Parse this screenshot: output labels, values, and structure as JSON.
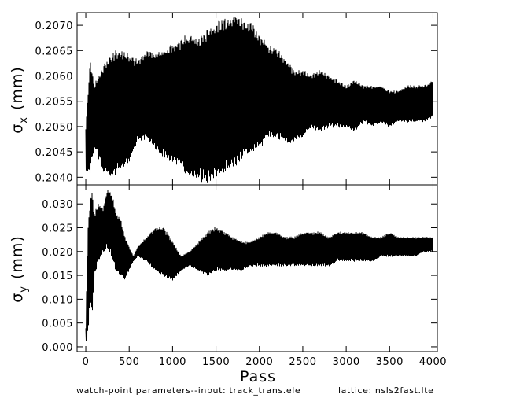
{
  "chart_data": [
    {
      "type": "line",
      "panel": "top",
      "title": "",
      "xlabel": "",
      "ylabel": "σ x (mm)",
      "ylabel_symbol": "σ",
      "ylabel_subscript": "x",
      "ylabel_units": "(mm)",
      "xlim": [
        -100,
        4050
      ],
      "ylim": [
        0.20385,
        0.20725
      ],
      "yticks": [
        0.204,
        0.2045,
        0.205,
        0.2055,
        0.206,
        0.2065,
        0.207
      ],
      "ytick_labels": [
        "0.2040",
        "0.2045",
        "0.2050",
        "0.2055",
        "0.2060",
        "0.2065",
        "0.2070"
      ],
      "grid": false,
      "color": "#000000",
      "series": [
        {
          "name": "",
          "envelope_x": [
            0,
            50,
            100,
            150,
            200,
            300,
            400,
            500,
            600,
            700,
            800,
            900,
            1000,
            1100,
            1200,
            1300,
            1400,
            1500,
            1600,
            1700,
            1800,
            1900,
            2000,
            2100,
            2200,
            2300,
            2400,
            2500,
            2600,
            2700,
            2800,
            2900,
            3000,
            3100,
            3200,
            3300,
            3400,
            3500,
            3600,
            3700,
            3800,
            3900,
            4000
          ],
          "upper": [
            0.205,
            0.2063,
            0.2058,
            0.206,
            0.2062,
            0.2064,
            0.2065,
            0.2064,
            0.2063,
            0.2065,
            0.2064,
            0.2065,
            0.2066,
            0.2067,
            0.2068,
            0.2067,
            0.2069,
            0.207,
            0.2071,
            0.2072,
            0.2071,
            0.207,
            0.2068,
            0.2066,
            0.2065,
            0.2063,
            0.2061,
            0.2061,
            0.206,
            0.2061,
            0.206,
            0.2059,
            0.2058,
            0.2059,
            0.2058,
            0.2058,
            0.2058,
            0.2057,
            0.2057,
            0.2058,
            0.2058,
            0.2058,
            0.2059
          ],
          "lower": [
            0.2041,
            0.2041,
            0.2046,
            0.2044,
            0.2041,
            0.204,
            0.2042,
            0.2043,
            0.2047,
            0.2048,
            0.2046,
            0.2044,
            0.2043,
            0.2042,
            0.204,
            0.204,
            0.2039,
            0.204,
            0.2041,
            0.2042,
            0.2044,
            0.2045,
            0.2046,
            0.2048,
            0.2048,
            0.2047,
            0.2047,
            0.2048,
            0.205,
            0.2049,
            0.205,
            0.205,
            0.205,
            0.2049,
            0.2051,
            0.205,
            0.2051,
            0.205,
            0.2051,
            0.2051,
            0.2051,
            0.2051,
            0.2052
          ]
        }
      ]
    },
    {
      "type": "line",
      "panel": "bottom",
      "title": "",
      "xlabel": "Pass",
      "ylabel": "σ y (mm)",
      "ylabel_symbol": "σ",
      "ylabel_subscript": "y",
      "ylabel_units": "(mm)",
      "xlim": [
        -100,
        4050
      ],
      "ylim": [
        -0.001,
        0.034
      ],
      "xticks": [
        0,
        500,
        1000,
        1500,
        2000,
        2500,
        3000,
        3500,
        4000
      ],
      "xtick_labels": [
        "0",
        "500",
        "1000",
        "1500",
        "2000",
        "2500",
        "3000",
        "3500",
        "4000"
      ],
      "yticks": [
        0.0,
        0.005,
        0.01,
        0.015,
        0.02,
        0.025,
        0.03
      ],
      "ytick_labels": [
        "0.000",
        "0.005",
        "0.010",
        "0.015",
        "0.020",
        "0.025",
        "0.030"
      ],
      "grid": false,
      "color": "#000000",
      "series": [
        {
          "name": "",
          "envelope_x": [
            0,
            25,
            50,
            75,
            100,
            150,
            200,
            250,
            300,
            350,
            400,
            450,
            500,
            550,
            600,
            700,
            800,
            900,
            1000,
            1100,
            1200,
            1300,
            1400,
            1500,
            1600,
            1700,
            1800,
            1900,
            2000,
            2100,
            2200,
            2300,
            2400,
            2500,
            2600,
            2700,
            2800,
            2900,
            3000,
            3100,
            3200,
            3300,
            3400,
            3500,
            3600,
            3700,
            3800,
            3900,
            4000
          ],
          "upper": [
            0.004,
            0.025,
            0.031,
            0.032,
            0.028,
            0.03,
            0.029,
            0.033,
            0.032,
            0.028,
            0.027,
            0.023,
            0.021,
            0.019,
            0.021,
            0.023,
            0.025,
            0.025,
            0.022,
            0.019,
            0.02,
            0.022,
            0.024,
            0.025,
            0.024,
            0.023,
            0.022,
            0.022,
            0.023,
            0.024,
            0.024,
            0.023,
            0.023,
            0.024,
            0.024,
            0.024,
            0.023,
            0.024,
            0.024,
            0.024,
            0.024,
            0.023,
            0.023,
            0.024,
            0.023,
            0.023,
            0.023,
            0.023,
            0.023
          ],
          "lower": [
            0.001,
            0.002,
            0.01,
            0.007,
            0.015,
            0.018,
            0.02,
            0.021,
            0.019,
            0.016,
            0.015,
            0.014,
            0.016,
            0.018,
            0.019,
            0.018,
            0.016,
            0.015,
            0.014,
            0.016,
            0.017,
            0.016,
            0.015,
            0.016,
            0.016,
            0.016,
            0.016,
            0.017,
            0.017,
            0.017,
            0.017,
            0.017,
            0.017,
            0.017,
            0.017,
            0.017,
            0.017,
            0.018,
            0.018,
            0.018,
            0.018,
            0.018,
            0.019,
            0.019,
            0.019,
            0.019,
            0.019,
            0.02,
            0.02
          ]
        }
      ]
    }
  ],
  "footer": {
    "left": "watch-point parameters--input: track_trans.ele",
    "right": "lattice: nsls2fast.lte"
  }
}
